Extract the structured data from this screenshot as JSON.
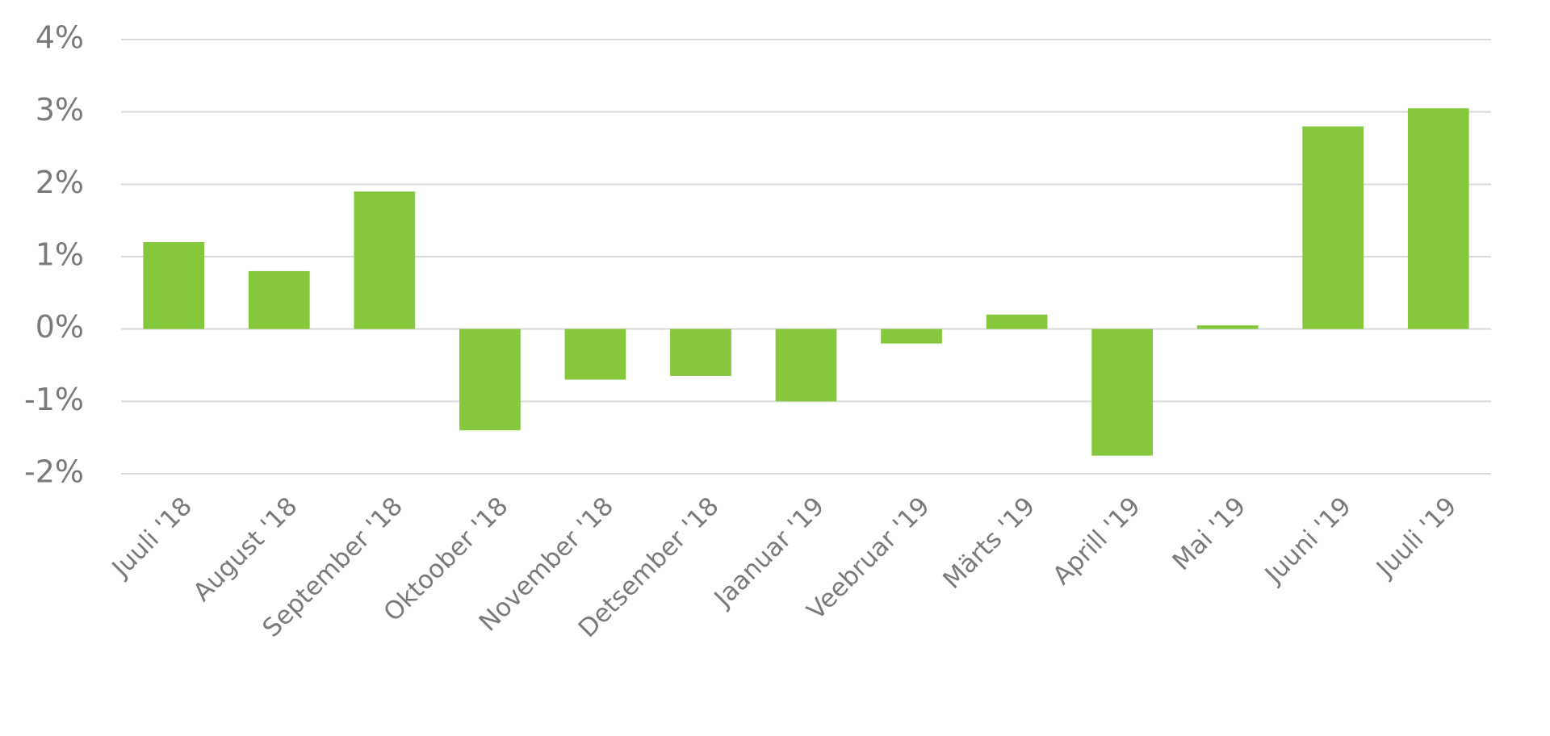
{
  "chart_data": {
    "type": "bar",
    "categories": [
      "Juuli '18",
      "August '18",
      "September '18",
      "Oktoober '18",
      "November '18",
      "Detsember '18",
      "Jaanuar '19",
      "Veebruar '19",
      "Märts '19",
      "Aprill '19",
      "Mai '19",
      "Juuni '19",
      "Juuli '19"
    ],
    "values": [
      1.2,
      0.8,
      1.9,
      -1.4,
      -0.7,
      -0.65,
      -1.0,
      -0.2,
      0.2,
      -1.75,
      0.05,
      2.8,
      3.05
    ],
    "color": "#86c83c",
    "ylim": [
      -2,
      4
    ],
    "yticks": [
      {
        "value": -2,
        "label": "-2%"
      },
      {
        "value": -1,
        "label": "-1%"
      },
      {
        "value": 0,
        "label": "0%"
      },
      {
        "value": 1,
        "label": "1%"
      },
      {
        "value": 2,
        "label": "2%"
      },
      {
        "value": 3,
        "label": "3%"
      },
      {
        "value": 4,
        "label": "4%"
      }
    ],
    "grid": true
  }
}
